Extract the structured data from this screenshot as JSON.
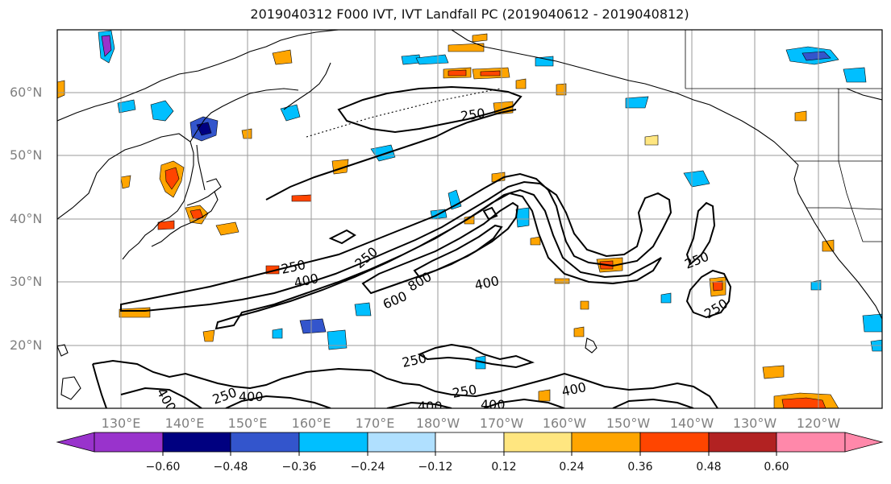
{
  "title": "2019040312 F000 IVT, IVT Landfall PC (2019040612 - 2019040812)",
  "map": {
    "lat_labels": [
      "60°N",
      "50°N",
      "40°N",
      "30°N",
      "20°N"
    ],
    "lon_labels": [
      "130°E",
      "140°E",
      "150°E",
      "160°E",
      "170°E",
      "180°W",
      "170°W",
      "160°W",
      "150°W",
      "140°W",
      "130°W",
      "120°W"
    ],
    "contour_labels": [
      "250",
      "250",
      "400",
      "250",
      "600",
      "800",
      "400",
      "250",
      "250",
      "250",
      "400",
      "250",
      "400",
      "250",
      "400",
      "400",
      "400",
      "250",
      "400"
    ],
    "colors": {
      "land_outline": "#000000",
      "gridline": "#9a9a9a",
      "contour": "#000000"
    }
  },
  "colorbar": {
    "labels": [
      "−0.60",
      "−0.48",
      "−0.36",
      "−0.24",
      "−0.12",
      "0.12",
      "0.24",
      "0.36",
      "0.48",
      "0.60"
    ],
    "colors": [
      "#9933cc",
      "#000080",
      "#3355cc",
      "#00bfff",
      "#b0e0ff",
      "#ffffff",
      "#ffe680",
      "#ffa500",
      "#ff4500",
      "#b22222",
      "#ff88aa"
    ]
  }
}
